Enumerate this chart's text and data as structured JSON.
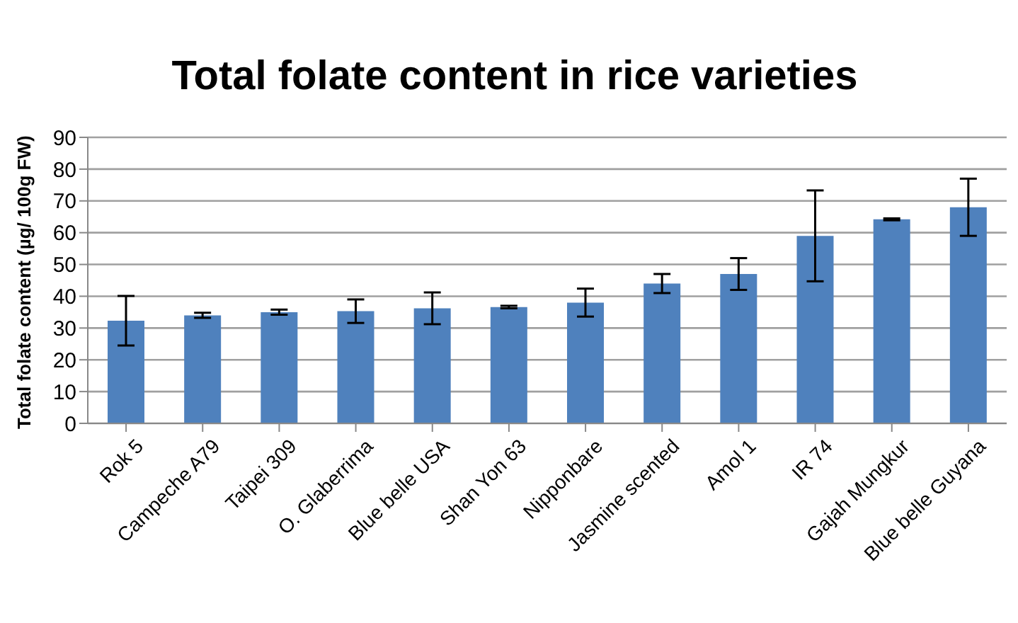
{
  "chart_data": {
    "type": "bar",
    "title": "Total folate content in rice varieties",
    "ylabel": "Total folate content (µg/ 100g FW)",
    "categories": [
      "Rok 5",
      "Campeche A79",
      "Taipei 309",
      "O. Glaberrima",
      "Blue belle USA",
      "Shan Yon 63",
      "Nipponbare",
      "Jasmine scented",
      "Amol 1",
      "IR 74",
      "Gajah Mungkur",
      "Blue belle Guyana"
    ],
    "values": [
      32.3,
      34,
      35,
      35.3,
      36.2,
      36.6,
      38,
      44,
      47,
      59,
      64.2,
      68
    ],
    "errors": [
      7.8,
      0.8,
      0.8,
      3.7,
      5,
      0.4,
      4.4,
      3,
      5,
      14.3,
      0.3,
      9
    ],
    "color": "#4f81bd",
    "ylim": [
      0,
      90
    ],
    "yticks": [
      0,
      10,
      20,
      30,
      40,
      50,
      60,
      70,
      80,
      90
    ],
    "grid": "y"
  }
}
